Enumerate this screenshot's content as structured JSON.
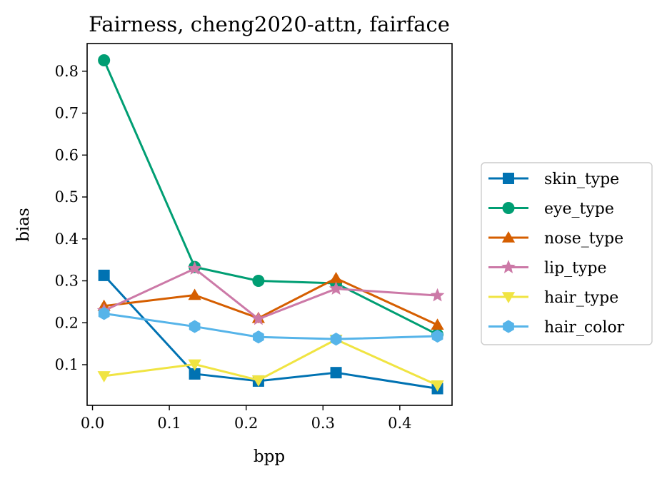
{
  "chart_data": {
    "type": "line",
    "title": "Fairness, cheng2020-attn, fairface",
    "xlabel": "bpp",
    "ylabel": "bias",
    "xlim": [
      -0.007,
      0.468
    ],
    "ylim": [
      0.003,
      0.866
    ],
    "xticks": [
      0.0,
      0.1,
      0.2,
      0.3,
      0.4
    ],
    "xtick_labels": [
      "0.0",
      "0.1",
      "0.2",
      "0.3",
      "0.4"
    ],
    "yticks": [
      0.1,
      0.2,
      0.3,
      0.4,
      0.5,
      0.6,
      0.7,
      0.8
    ],
    "ytick_labels": [
      "0.1",
      "0.2",
      "0.3",
      "0.4",
      "0.5",
      "0.6",
      "0.7",
      "0.8"
    ],
    "grid": false,
    "legend_position": "outside-right",
    "x": [
      0.015,
      0.133,
      0.216,
      0.317,
      0.449
    ],
    "series": [
      {
        "name": "skin_type",
        "color": "#0072b2",
        "marker": "square",
        "values": [
          0.313,
          0.078,
          0.061,
          0.081,
          0.043
        ]
      },
      {
        "name": "eye_type",
        "color": "#009e73",
        "marker": "circle",
        "values": [
          0.826,
          0.333,
          0.3,
          0.294,
          0.172
        ]
      },
      {
        "name": "nose_type",
        "color": "#d55e00",
        "marker": "triangle-up",
        "values": [
          0.24,
          0.266,
          0.211,
          0.306,
          0.195
        ]
      },
      {
        "name": "lip_type",
        "color": "#cc79a7",
        "marker": "star",
        "values": [
          0.229,
          0.329,
          0.209,
          0.281,
          0.265
        ]
      },
      {
        "name": "hair_type",
        "color": "#f0e442",
        "marker": "triangle-down",
        "values": [
          0.073,
          0.101,
          0.063,
          0.16,
          0.051
        ]
      },
      {
        "name": "hair_color",
        "color": "#56b4e9",
        "marker": "hexagon",
        "values": [
          0.222,
          0.191,
          0.166,
          0.161,
          0.168
        ]
      }
    ]
  }
}
